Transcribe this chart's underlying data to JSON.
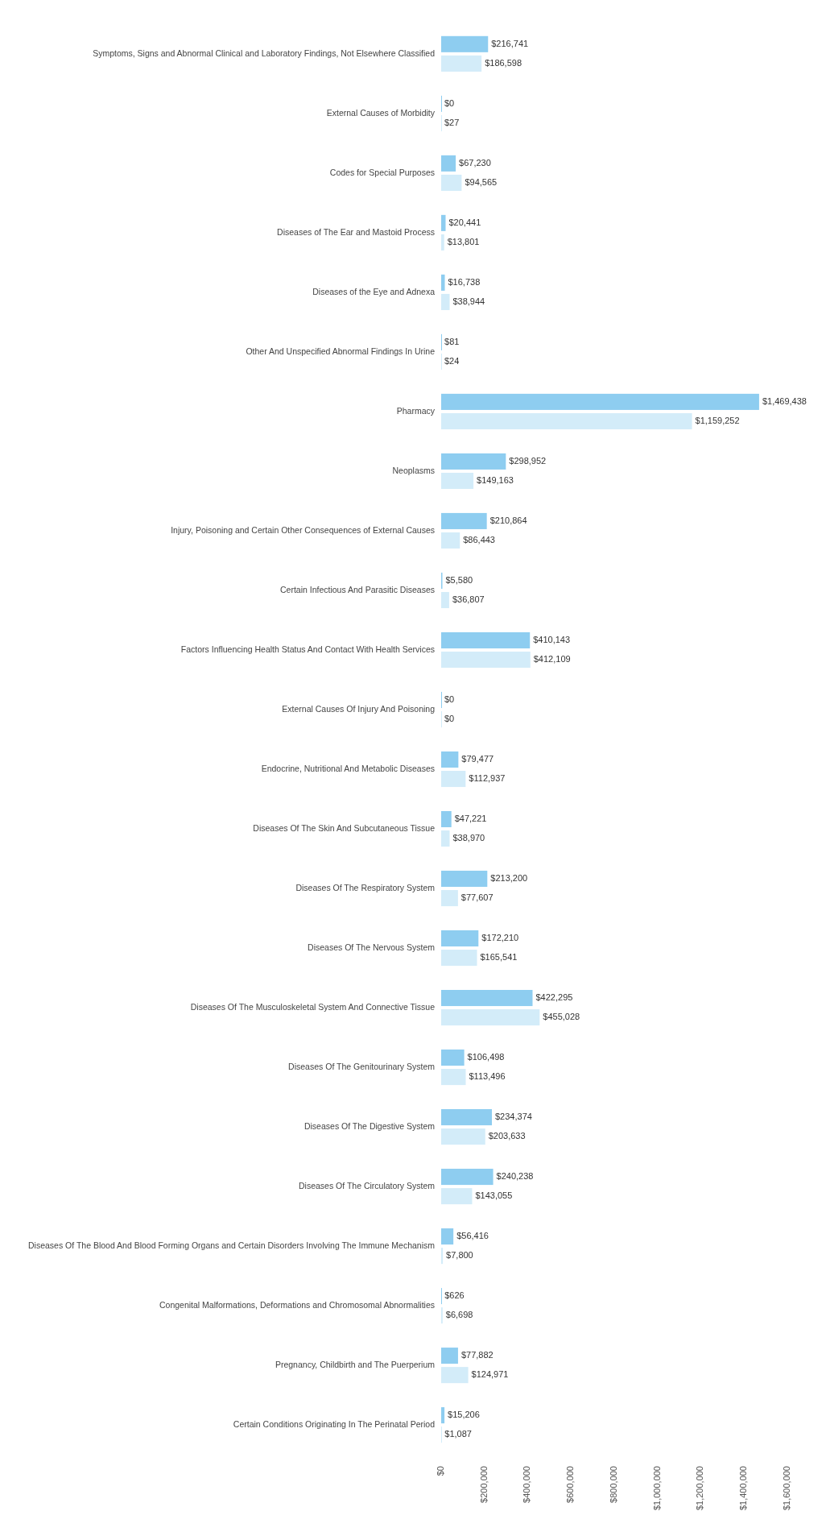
{
  "chart_data": {
    "type": "bar",
    "orientation": "horizontal",
    "categories": [
      "Symptoms, Signs and Abnormal Clinical and Laboratory Findings, Not Elsewhere Classified",
      "External Causes of Morbidity",
      "Codes for Special Purposes",
      "Diseases of The Ear and Mastoid Process",
      "Diseases of the Eye and Adnexa",
      "Other And Unspecified Abnormal Findings In Urine",
      "Pharmacy",
      "Neoplasms",
      "Injury, Poisoning and Certain Other Consequences of External Causes",
      "Certain Infectious And Parasitic Diseases",
      "Factors Influencing Health Status And Contact With Health Services",
      "External Causes Of Injury And Poisoning",
      "Endocrine, Nutritional And Metabolic Diseases",
      "Diseases Of The Skin And Subcutaneous Tissue",
      "Diseases Of The Respiratory System",
      "Diseases Of The Nervous System",
      "Diseases Of The Musculoskeletal System And Connective Tissue",
      "Diseases Of The Genitourinary System",
      "Diseases Of The Digestive System",
      "Diseases Of The Circulatory System",
      "Diseases Of The Blood And Blood Forming Organs and Certain Disorders Involving The Immune Mechanism",
      "Congenital Malformations, Deformations and Chromosomal Abnormalities",
      "Pregnancy, Childbirth and The Puerperium",
      "Certain Conditions Originating In The Perinatal Period"
    ],
    "series": [
      {
        "color": "#8ecdf0",
        "values": [
          216741,
          0,
          67230,
          20441,
          16738,
          81,
          1469438,
          298952,
          210864,
          5580,
          410143,
          0,
          79477,
          47221,
          213200,
          172210,
          422295,
          106498,
          234374,
          240238,
          56416,
          626,
          77882,
          15206
        ],
        "value_labels": [
          "$216,741",
          "$0",
          "$67,230",
          "$20,441",
          "$16,738",
          "$81",
          "$1,469,438",
          "$298,952",
          "$210,864",
          "$5,580",
          "$410,143",
          "$0",
          "$79,477",
          "$47,221",
          "$213,200",
          "$172,210",
          "$422,295",
          "$106,498",
          "$234,374",
          "$240,238",
          "$56,416",
          "$626",
          "$77,882",
          "$15,206"
        ]
      },
      {
        "color": "#d3ecf9",
        "values": [
          186598,
          27,
          94565,
          13801,
          38944,
          24,
          1159252,
          149163,
          86443,
          36807,
          412109,
          0,
          112937,
          38970,
          77607,
          165541,
          455028,
          113496,
          203633,
          143055,
          7800,
          6698,
          124971,
          1087
        ],
        "value_labels": [
          "$186,598",
          "$27",
          "$94,565",
          "$13,801",
          "$38,944",
          "$24",
          "$1,159,252",
          "$149,163",
          "$86,443",
          "$36,807",
          "$412,109",
          "$0",
          "$112,937",
          "$38,970",
          "$77,607",
          "$165,541",
          "$455,028",
          "$113,496",
          "$203,633",
          "$143,055",
          "$7,800",
          "$6,698",
          "$124,971",
          "$1,087"
        ]
      }
    ],
    "xlim": [
      0,
      1600000
    ],
    "xticks": [
      {
        "value": 0,
        "label": "$0"
      },
      {
        "value": 200000,
        "label": "$200,000"
      },
      {
        "value": 400000,
        "label": "$400,000"
      },
      {
        "value": 600000,
        "label": "$600,000"
      },
      {
        "value": 800000,
        "label": "$800,000"
      },
      {
        "value": 1000000,
        "label": "$1,000,000"
      },
      {
        "value": 1200000,
        "label": "$1,200,000"
      },
      {
        "value": 1400000,
        "label": "$1,400,000"
      },
      {
        "value": 1600000,
        "label": "$1,600,000"
      }
    ]
  }
}
